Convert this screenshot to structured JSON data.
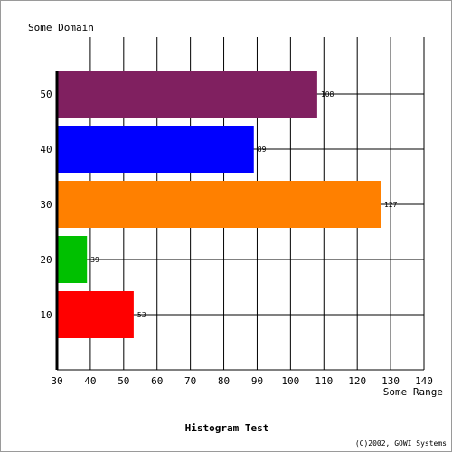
{
  "chart_data": {
    "type": "bar",
    "orientation": "horizontal",
    "title": "Histogram Test",
    "ylabel": "Some Domain",
    "xlabel": "Some Range",
    "credit": "(C)2002, GOWI Systems",
    "categories": [
      "10",
      "20",
      "30",
      "40",
      "50"
    ],
    "values": [
      53,
      39,
      127,
      89,
      108
    ],
    "value_labels": [
      "53",
      "39",
      "127",
      "89",
      "108"
    ],
    "colors": [
      "#ff0000",
      "#00c000",
      "#ff8000",
      "#0000ff",
      "#802060"
    ],
    "xlim": [
      30,
      140
    ],
    "x_ticks": [
      30,
      40,
      50,
      60,
      70,
      80,
      90,
      100,
      110,
      120,
      130,
      140
    ],
    "x_tick_labels": [
      "30",
      "40",
      "50",
      "60",
      "70",
      "80",
      "90",
      "100",
      "110",
      "120",
      "130",
      "140"
    ],
    "grid": true
  }
}
